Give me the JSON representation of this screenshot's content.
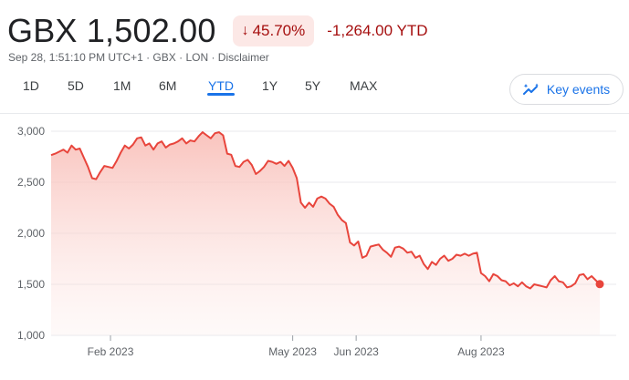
{
  "header": {
    "price": "GBX 1,502.00",
    "change_pct": "45.70%",
    "change_abs": "-1,264.00 YTD",
    "meta": [
      "Sep 28, 1:51:10 PM UTC+1",
      "GBX",
      "LON",
      "Disclaimer"
    ],
    "meta_separator": " · "
  },
  "ranges": [
    {
      "label": "1D",
      "active": false
    },
    {
      "label": "5D",
      "active": false
    },
    {
      "label": "1M",
      "active": false
    },
    {
      "label": "6M",
      "active": false
    },
    {
      "label": "YTD",
      "active": true
    },
    {
      "label": "1Y",
      "active": false
    },
    {
      "label": "5Y",
      "active": false
    },
    {
      "label": "MAX",
      "active": false
    }
  ],
  "key_events_label": "Key events",
  "colors": {
    "line": "#e8453c",
    "fill": "#fbd3cf",
    "negative": "#a50e0e",
    "chip_bg": "#fce8e6",
    "accent": "#1a73e8"
  },
  "chart_data": {
    "type": "area",
    "ylim": [
      1000,
      3000
    ],
    "y_ticks": [
      1000,
      1500,
      2000,
      2500,
      3000
    ],
    "y_tick_labels": [
      "1,000",
      "1,500",
      "2,000",
      "2,500",
      "3,000"
    ],
    "xlim": [
      "2023-01-03",
      "2023-09-28"
    ],
    "x_ticks": [
      {
        "date": "2023-02-01",
        "label": "Feb 2023"
      },
      {
        "date": "2023-05-01",
        "label": "May 2023"
      },
      {
        "date": "2023-06-01",
        "label": "Jun 2023"
      },
      {
        "date": "2023-08-01",
        "label": "Aug 2023"
      }
    ],
    "grid": true,
    "series": [
      {
        "x": [
          "2023-01-03",
          "2023-01-05",
          "2023-01-07",
          "2023-01-09",
          "2023-01-11",
          "2023-01-13",
          "2023-01-15",
          "2023-01-17",
          "2023-01-19",
          "2023-01-21",
          "2023-01-23",
          "2023-01-25",
          "2023-01-27",
          "2023-01-29",
          "2023-01-31",
          "2023-02-02",
          "2023-02-04",
          "2023-02-06",
          "2023-02-08",
          "2023-02-10",
          "2023-02-12",
          "2023-02-14",
          "2023-02-16",
          "2023-02-18",
          "2023-02-20",
          "2023-02-22",
          "2023-02-24",
          "2023-02-26",
          "2023-02-28",
          "2023-03-02",
          "2023-03-04",
          "2023-03-06",
          "2023-03-08",
          "2023-03-10",
          "2023-03-12",
          "2023-03-14",
          "2023-03-16",
          "2023-03-18",
          "2023-03-20",
          "2023-03-22",
          "2023-03-24",
          "2023-03-26",
          "2023-03-28",
          "2023-03-30",
          "2023-04-01",
          "2023-04-03",
          "2023-04-05",
          "2023-04-07",
          "2023-04-09",
          "2023-04-11",
          "2023-04-13",
          "2023-04-15",
          "2023-04-17",
          "2023-04-19",
          "2023-04-21",
          "2023-04-23",
          "2023-04-25",
          "2023-04-27",
          "2023-04-29",
          "2023-05-01",
          "2023-05-03",
          "2023-05-05",
          "2023-05-07",
          "2023-05-09",
          "2023-05-11",
          "2023-05-13",
          "2023-05-15",
          "2023-05-17",
          "2023-05-19",
          "2023-05-21",
          "2023-05-23",
          "2023-05-25",
          "2023-05-27",
          "2023-05-29",
          "2023-05-31",
          "2023-06-02",
          "2023-06-04",
          "2023-06-06",
          "2023-06-08",
          "2023-06-10",
          "2023-06-12",
          "2023-06-14",
          "2023-06-16",
          "2023-06-18",
          "2023-06-20",
          "2023-06-22",
          "2023-06-24",
          "2023-06-26",
          "2023-06-28",
          "2023-06-30",
          "2023-07-02",
          "2023-07-04",
          "2023-07-06",
          "2023-07-08",
          "2023-07-10",
          "2023-07-12",
          "2023-07-14",
          "2023-07-16",
          "2023-07-18",
          "2023-07-20",
          "2023-07-22",
          "2023-07-24",
          "2023-07-26",
          "2023-07-28",
          "2023-07-30",
          "2023-08-01",
          "2023-08-03",
          "2023-08-05",
          "2023-08-07",
          "2023-08-09",
          "2023-08-11",
          "2023-08-13",
          "2023-08-15",
          "2023-08-17",
          "2023-08-19",
          "2023-08-21",
          "2023-08-23",
          "2023-08-25",
          "2023-08-27",
          "2023-08-29",
          "2023-08-31",
          "2023-09-02",
          "2023-09-04",
          "2023-09-06",
          "2023-09-08",
          "2023-09-10",
          "2023-09-12",
          "2023-09-14",
          "2023-09-16",
          "2023-09-18",
          "2023-09-20",
          "2023-09-22",
          "2023-09-24",
          "2023-09-26",
          "2023-09-28"
        ],
        "y": [
          2766,
          2780,
          2800,
          2820,
          2790,
          2860,
          2820,
          2830,
          2740,
          2650,
          2540,
          2530,
          2600,
          2660,
          2650,
          2640,
          2710,
          2790,
          2860,
          2830,
          2870,
          2930,
          2940,
          2860,
          2880,
          2820,
          2880,
          2900,
          2840,
          2870,
          2880,
          2900,
          2930,
          2880,
          2910,
          2900,
          2950,
          2990,
          2960,
          2930,
          2980,
          2990,
          2960,
          2780,
          2770,
          2660,
          2650,
          2700,
          2720,
          2670,
          2580,
          2610,
          2650,
          2710,
          2700,
          2680,
          2700,
          2660,
          2710,
          2640,
          2540,
          2300,
          2250,
          2300,
          2260,
          2340,
          2360,
          2340,
          2290,
          2260,
          2180,
          2130,
          2100,
          1910,
          1880,
          1920,
          1760,
          1780,
          1870,
          1880,
          1890,
          1840,
          1810,
          1770,
          1860,
          1870,
          1850,
          1810,
          1820,
          1760,
          1780,
          1700,
          1650,
          1720,
          1690,
          1750,
          1780,
          1730,
          1750,
          1790,
          1780,
          1800,
          1780,
          1800,
          1810,
          1610,
          1580,
          1530,
          1600,
          1580,
          1540,
          1530,
          1490,
          1510,
          1480,
          1520,
          1480,
          1460,
          1500,
          1490,
          1480,
          1470,
          1540,
          1580,
          1530,
          1520,
          1470,
          1480,
          1510,
          1590,
          1600,
          1550,
          1580,
          1540,
          1502
        ]
      }
    ]
  }
}
